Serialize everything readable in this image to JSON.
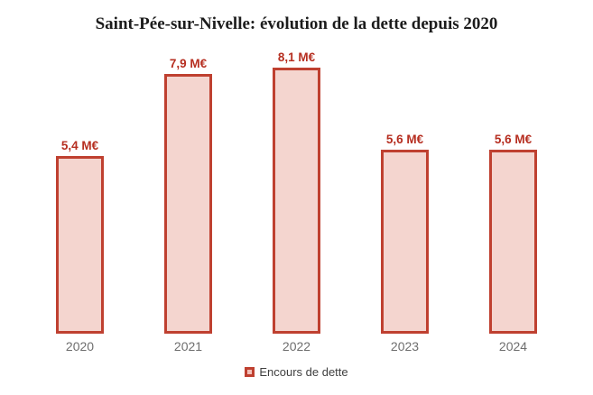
{
  "chart_data": {
    "type": "bar",
    "title": "Saint-Pée-sur-Nivelle: évolution de la dette depuis 2020",
    "categories": [
      "2020",
      "2021",
      "2022",
      "2023",
      "2024"
    ],
    "values": [
      5.4,
      7.9,
      8.1,
      5.6,
      5.6
    ],
    "value_labels": [
      "5,4 M€",
      "7,9 M€",
      "8,1 M€",
      "5,6 M€",
      "5,6 M€"
    ],
    "series_name": "Encours de dette",
    "unit": "M€",
    "xlabel": "",
    "ylabel": "",
    "ylim": [
      0,
      8.5
    ],
    "grid": false,
    "axes_visible": false,
    "legend_position": "bottom-center",
    "colors": {
      "bar_fill": "#f4d5cf",
      "bar_border": "#bf4030",
      "value_label": "#b62e20",
      "title": "#1c1c1c",
      "axis_label": "#6e6e6e",
      "legend_text": "#3f3f3f",
      "background": "#ffffff"
    }
  }
}
